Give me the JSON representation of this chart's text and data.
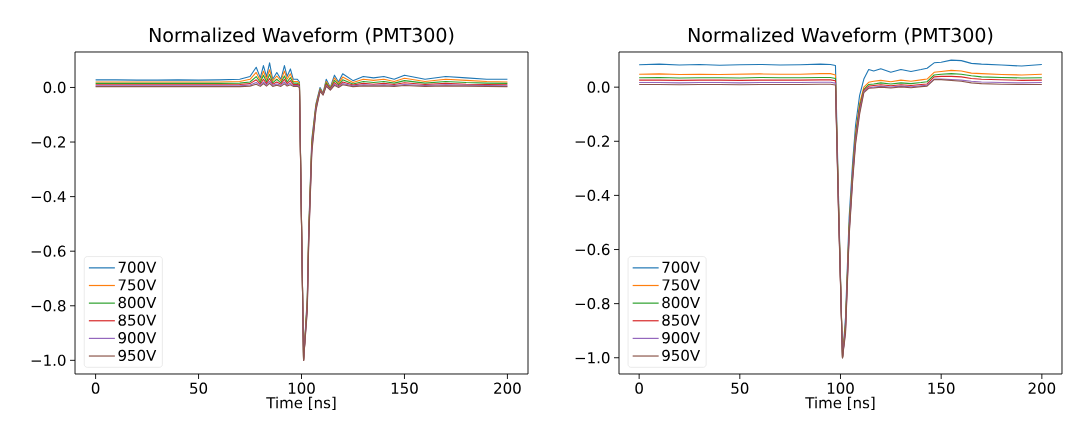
{
  "chart_data": [
    {
      "type": "line",
      "title": "Normalized Waveform (PMT300)",
      "xlabel": "Time [ns]",
      "legend": "bottom left",
      "x": [
        0,
        10,
        20,
        30,
        40,
        50,
        60,
        70,
        75,
        78,
        80,
        81.5,
        83,
        84.5,
        86,
        88,
        90,
        91.7,
        93,
        94.6,
        96,
        98,
        99,
        101,
        102.8,
        103.5,
        105,
        107,
        109,
        110.5,
        112,
        114,
        116,
        118,
        120,
        125,
        130,
        135,
        140,
        145,
        150,
        160,
        170,
        180,
        190,
        200
      ],
      "xlim": [
        -10,
        210
      ],
      "ylim": [
        -1.05,
        0.13
      ],
      "xticks": [
        0,
        50,
        100,
        150,
        200
      ],
      "yticks": [
        {
          "value": -1.0,
          "label": "−1.0"
        },
        {
          "value": -0.8,
          "label": "−0.8"
        },
        {
          "value": -0.6,
          "label": "−0.6"
        },
        {
          "value": -0.4,
          "label": "−0.4"
        },
        {
          "value": -0.2,
          "label": "−0.2"
        },
        {
          "value": 0,
          "label": "0.0"
        }
      ],
      "series": [
        {
          "name": "700V",
          "color": "#1f77b4",
          "values": [
            0.028,
            0.028,
            0.027,
            0.027,
            0.028,
            0.027,
            0.028,
            0.03,
            0.04,
            0.074,
            0.035,
            0.08,
            0.04,
            0.09,
            0.03,
            0.055,
            0.03,
            0.08,
            0.04,
            0.068,
            0.03,
            0.03,
            0.02,
            -1.0,
            -0.77,
            -0.52,
            -0.19,
            -0.06,
            0.0,
            -0.02,
            0.03,
            0.0,
            0.045,
            0.02,
            0.05,
            0.025,
            0.04,
            0.035,
            0.04,
            0.03,
            0.045,
            0.03,
            0.04,
            0.035,
            0.03,
            0.03
          ]
        },
        {
          "name": "750V",
          "color": "#ff7f0e",
          "values": [
            0.02,
            0.02,
            0.02,
            0.02,
            0.02,
            0.02,
            0.02,
            0.022,
            0.03,
            0.055,
            0.025,
            0.06,
            0.03,
            0.065,
            0.024,
            0.042,
            0.024,
            0.06,
            0.03,
            0.05,
            0.022,
            0.022,
            0.015,
            -1.0,
            -0.78,
            -0.53,
            -0.2,
            -0.065,
            -0.005,
            -0.022,
            0.022,
            -0.003,
            0.035,
            0.015,
            0.038,
            0.018,
            0.03,
            0.026,
            0.03,
            0.022,
            0.034,
            0.022,
            0.03,
            0.026,
            0.022,
            0.02
          ]
        },
        {
          "name": "800V",
          "color": "#2ca02c",
          "values": [
            0.015,
            0.015,
            0.015,
            0.015,
            0.015,
            0.015,
            0.015,
            0.016,
            0.02,
            0.04,
            0.018,
            0.045,
            0.02,
            0.048,
            0.017,
            0.03,
            0.017,
            0.042,
            0.02,
            0.036,
            0.016,
            0.016,
            0.01,
            -1.0,
            -0.79,
            -0.54,
            -0.21,
            -0.07,
            -0.008,
            -0.024,
            0.016,
            -0.005,
            0.026,
            0.01,
            0.028,
            0.013,
            0.022,
            0.018,
            0.022,
            0.016,
            0.025,
            0.016,
            0.022,
            0.018,
            0.016,
            0.015
          ]
        },
        {
          "name": "850V",
          "color": "#d62728",
          "values": [
            0.01,
            0.01,
            0.01,
            0.01,
            0.01,
            0.01,
            0.01,
            0.011,
            0.014,
            0.028,
            0.012,
            0.03,
            0.014,
            0.033,
            0.012,
            0.02,
            0.012,
            0.03,
            0.014,
            0.025,
            0.011,
            0.011,
            0.006,
            -1.0,
            -0.8,
            -0.55,
            -0.22,
            -0.075,
            -0.01,
            -0.025,
            0.011,
            -0.006,
            0.018,
            0.006,
            0.02,
            0.009,
            0.015,
            0.012,
            0.015,
            0.011,
            0.017,
            0.011,
            0.015,
            0.012,
            0.011,
            0.01
          ]
        },
        {
          "name": "900V",
          "color": "#9467bd",
          "values": [
            0.006,
            0.006,
            0.006,
            0.006,
            0.006,
            0.006,
            0.006,
            0.006,
            0.009,
            0.018,
            0.008,
            0.02,
            0.009,
            0.022,
            0.008,
            0.013,
            0.008,
            0.02,
            0.009,
            0.016,
            0.007,
            0.007,
            0.003,
            -1.0,
            -0.81,
            -0.56,
            -0.23,
            -0.08,
            -0.012,
            -0.026,
            0.007,
            -0.008,
            0.012,
            0.003,
            0.014,
            0.006,
            0.01,
            0.008,
            0.01,
            0.007,
            0.011,
            0.007,
            0.01,
            0.008,
            0.007,
            0.006
          ]
        },
        {
          "name": "950V",
          "color": "#8c564b",
          "values": [
            0.003,
            0.003,
            0.003,
            0.003,
            0.003,
            0.003,
            0.003,
            0.003,
            0.005,
            0.012,
            0.004,
            0.014,
            0.005,
            0.015,
            0.004,
            0.008,
            0.004,
            0.013,
            0.005,
            0.01,
            0.004,
            0.004,
            0.0,
            -1.0,
            -0.82,
            -0.57,
            -0.24,
            -0.085,
            -0.014,
            -0.028,
            0.004,
            -0.01,
            0.008,
            0.0,
            0.01,
            0.003,
            0.006,
            0.005,
            0.006,
            0.004,
            0.007,
            0.004,
            0.006,
            0.005,
            0.004,
            0.003
          ]
        }
      ]
    },
    {
      "type": "line",
      "title": "Normalized Waveform (PMT300)",
      "xlabel": "Time [ns]",
      "legend": "bottom left",
      "x": [
        0,
        10,
        20,
        30,
        40,
        50,
        60,
        70,
        80,
        90,
        95,
        97.5,
        99,
        101,
        102.5,
        104.3,
        106,
        107.5,
        109.5,
        111.6,
        114,
        116.5,
        120,
        125,
        130,
        135,
        140,
        143,
        146.5,
        150,
        155,
        160,
        165,
        170,
        180,
        190,
        200
      ],
      "xlim": [
        -10,
        210
      ],
      "ylim": [
        -1.06,
        0.13
      ],
      "xticks": [
        0,
        50,
        100,
        150,
        200
      ],
      "yticks": [
        {
          "value": -1.0,
          "label": "−1.0"
        },
        {
          "value": -0.8,
          "label": "−0.8"
        },
        {
          "value": -0.6,
          "label": "−0.6"
        },
        {
          "value": -0.4,
          "label": "−0.4"
        },
        {
          "value": -0.2,
          "label": "−0.2"
        },
        {
          "value": 0,
          "label": "0.0"
        }
      ],
      "series": [
        {
          "name": "700V",
          "color": "#1f77b4",
          "values": [
            0.083,
            0.085,
            0.082,
            0.084,
            0.081,
            0.083,
            0.084,
            0.082,
            0.083,
            0.085,
            0.084,
            0.08,
            -0.4,
            -1.0,
            -0.85,
            -0.48,
            -0.28,
            -0.14,
            -0.03,
            0.03,
            0.065,
            0.06,
            0.068,
            0.055,
            0.065,
            0.058,
            0.065,
            0.07,
            0.09,
            0.092,
            0.1,
            0.098,
            0.088,
            0.085,
            0.082,
            0.078,
            0.084
          ]
        },
        {
          "name": "750V",
          "color": "#ff7f0e",
          "values": [
            0.048,
            0.049,
            0.047,
            0.048,
            0.047,
            0.048,
            0.049,
            0.048,
            0.048,
            0.05,
            0.05,
            0.045,
            -0.42,
            -1.0,
            -0.87,
            -0.51,
            -0.31,
            -0.17,
            -0.06,
            0.0,
            0.018,
            0.022,
            0.025,
            0.02,
            0.026,
            0.022,
            0.027,
            0.03,
            0.055,
            0.058,
            0.062,
            0.06,
            0.052,
            0.05,
            0.047,
            0.045,
            0.048
          ]
        },
        {
          "name": "800V",
          "color": "#2ca02c",
          "values": [
            0.035,
            0.036,
            0.034,
            0.035,
            0.035,
            0.034,
            0.036,
            0.035,
            0.035,
            0.036,
            0.036,
            0.032,
            -0.43,
            -1.0,
            -0.88,
            -0.52,
            -0.32,
            -0.18,
            -0.07,
            -0.008,
            0.01,
            0.012,
            0.016,
            0.012,
            0.016,
            0.013,
            0.017,
            0.02,
            0.045,
            0.048,
            0.05,
            0.048,
            0.042,
            0.038,
            0.036,
            0.034,
            0.035
          ]
        },
        {
          "name": "850V",
          "color": "#d62728",
          "values": [
            0.026,
            0.026,
            0.025,
            0.026,
            0.026,
            0.025,
            0.026,
            0.026,
            0.026,
            0.027,
            0.027,
            0.024,
            -0.44,
            -1.0,
            -0.89,
            -0.53,
            -0.33,
            -0.19,
            -0.08,
            -0.012,
            0.004,
            0.006,
            0.009,
            0.005,
            0.009,
            0.006,
            0.01,
            0.012,
            0.038,
            0.04,
            0.04,
            0.038,
            0.032,
            0.029,
            0.027,
            0.025,
            0.026
          ]
        },
        {
          "name": "900V",
          "color": "#9467bd",
          "values": [
            0.017,
            0.017,
            0.016,
            0.017,
            0.017,
            0.016,
            0.017,
            0.017,
            0.017,
            0.018,
            0.018,
            0.015,
            -0.45,
            -1.0,
            -0.9,
            -0.54,
            -0.34,
            -0.2,
            -0.09,
            -0.016,
            -0.002,
            0.0,
            0.003,
            0.0,
            0.004,
            0.001,
            0.005,
            0.007,
            0.03,
            0.03,
            0.028,
            0.026,
            0.022,
            0.019,
            0.017,
            0.016,
            0.017
          ]
        },
        {
          "name": "950V",
          "color": "#8c564b",
          "values": [
            0.01,
            0.01,
            0.009,
            0.01,
            0.01,
            0.009,
            0.01,
            0.01,
            0.01,
            0.011,
            0.011,
            0.008,
            -0.46,
            -1.0,
            -0.91,
            -0.55,
            -0.35,
            -0.21,
            -0.1,
            -0.02,
            -0.004,
            -0.003,
            0.0,
            -0.003,
            0.001,
            -0.002,
            0.002,
            0.004,
            0.028,
            0.028,
            0.025,
            0.022,
            0.016,
            0.013,
            0.011,
            0.01,
            0.01
          ]
        }
      ]
    }
  ]
}
